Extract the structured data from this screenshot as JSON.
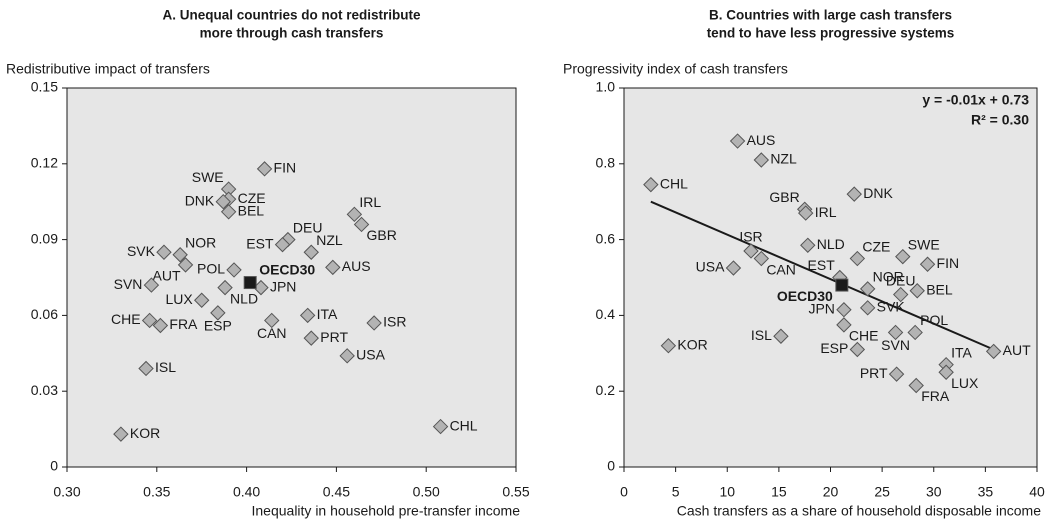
{
  "chart_data": [
    {
      "type": "scatter",
      "title": [
        "A.  Unequal countries do not redistribute",
        "more through cash transfers"
      ],
      "ylabel": "Redistributive impact of transfers",
      "xlabel": "Inequality in household pre-transfer income",
      "xlim": [
        0.3,
        0.55
      ],
      "xticks": [
        {
          "value": 0.3,
          "label": "0.30"
        },
        0.35,
        {
          "value": 0.4,
          "label": "0.40"
        },
        0.45,
        {
          "value": 0.5,
          "label": "0.50"
        },
        0.55
      ],
      "ylim": [
        0,
        0.15
      ],
      "yticks": [
        0,
        0.03,
        0.06,
        0.09,
        0.12,
        0.15
      ],
      "series": [
        {
          "marker": "diamond",
          "color": "#b3b3b3",
          "labels": [
            "FIN",
            "SWE",
            "CZE",
            "DNK",
            "BEL",
            "IRL",
            "GBR",
            "DEU",
            "EST",
            "NZL",
            "SVK",
            "NOR",
            "AUT",
            "POL",
            "AUS",
            "JPN",
            "NLD",
            "LUX",
            "ESP",
            "SVN",
            "CHE",
            "FRA",
            "CAN",
            "ITA",
            "ISR",
            "PRT",
            "USA",
            "ISL",
            "KOR",
            "CHL"
          ],
          "x": [
            0.41,
            0.39,
            0.39,
            0.387,
            0.39,
            0.46,
            0.464,
            0.423,
            0.42,
            0.436,
            0.354,
            0.363,
            0.366,
            0.393,
            0.448,
            0.408,
            0.388,
            0.375,
            0.384,
            0.347,
            0.346,
            0.352,
            0.414,
            0.434,
            0.471,
            0.436,
            0.456,
            0.344,
            0.33,
            0.508
          ],
          "values": [
            0.118,
            0.11,
            0.106,
            0.105,
            0.101,
            0.1,
            0.096,
            0.09,
            0.088,
            0.085,
            0.085,
            0.084,
            0.08,
            0.078,
            0.079,
            0.071,
            0.071,
            0.066,
            0.061,
            0.072,
            0.058,
            0.056,
            0.058,
            0.06,
            0.057,
            0.051,
            0.044,
            0.039,
            0.013,
            0.016
          ]
        },
        {
          "marker": "square",
          "color": "#1a1a1a",
          "labels": [
            "OECD30"
          ],
          "x": [
            0.402
          ],
          "values": [
            0.073
          ]
        }
      ]
    },
    {
      "type": "scatter",
      "title": [
        "B.  Countries with large cash transfers",
        "tend to have less progressive systems"
      ],
      "ylabel": "Progressivity index of cash transfers",
      "xlabel": "Cash transfers as a share of household disposable income",
      "xlim": [
        0,
        40
      ],
      "xticks": [
        0,
        5,
        10,
        15,
        20,
        25,
        30,
        35,
        40
      ],
      "ylim": [
        0,
        1
      ],
      "yticks": [
        0,
        0.2,
        0.4,
        0.6,
        0.8,
        {
          "value": 1,
          "label": "1.0"
        }
      ],
      "annotations": [
        "y = -0.01x + 0.73",
        "R² = 0.30"
      ],
      "trendline": {
        "x": [
          2.6,
          35.8
        ],
        "values": [
          0.7,
          0.31
        ],
        "color": "#1a1a1a"
      },
      "series": [
        {
          "marker": "diamond",
          "color": "#b3b3b3",
          "labels": [
            "AUS",
            "NZL",
            "CHL",
            "DNK",
            "GBR",
            "IRL",
            "NLD",
            "ISR",
            "CAN",
            "CZE",
            "SWE",
            "FIN",
            "USA",
            "EST",
            "NOR",
            "DEU",
            "BEL",
            "JPN",
            "SVK",
            "CHE",
            "POL",
            "SVN",
            "ISL",
            "KOR",
            "ESP",
            "AUT",
            "ITA",
            "LUX",
            "PRT",
            "FRA"
          ],
          "x": [
            11.0,
            13.3,
            2.6,
            22.3,
            17.5,
            17.6,
            17.8,
            12.3,
            13.3,
            22.6,
            27.0,
            29.4,
            10.6,
            20.9,
            23.6,
            26.8,
            28.4,
            21.3,
            23.6,
            21.3,
            28.2,
            26.3,
            15.2,
            4.3,
            22.6,
            35.8,
            31.2,
            31.2,
            26.4,
            28.3
          ],
          "values": [
            0.86,
            0.81,
            0.745,
            0.72,
            0.68,
            0.67,
            0.585,
            0.57,
            0.55,
            0.55,
            0.555,
            0.535,
            0.525,
            0.5,
            0.47,
            0.455,
            0.465,
            0.415,
            0.42,
            0.375,
            0.355,
            0.355,
            0.345,
            0.32,
            0.31,
            0.305,
            0.27,
            0.25,
            0.245,
            0.215
          ]
        },
        {
          "marker": "square",
          "color": "#1a1a1a",
          "labels": [
            "OECD30"
          ],
          "x": [
            21.1
          ],
          "values": [
            0.48
          ]
        }
      ]
    }
  ]
}
